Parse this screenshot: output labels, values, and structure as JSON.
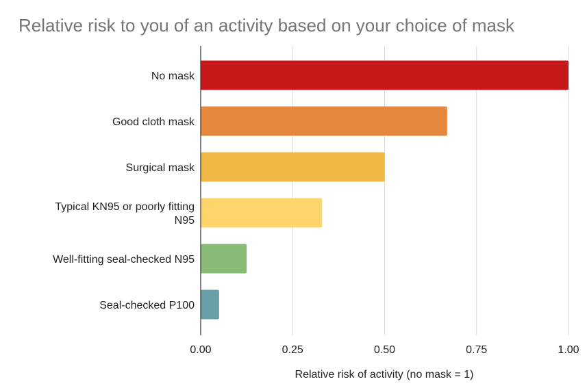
{
  "chart_data": {
    "type": "bar",
    "orientation": "horizontal",
    "title": "Relative risk to you of an activity based on your choice of mask",
    "xlabel": "Relative risk of activity (no mask = 1)",
    "ylabel": "",
    "xlim": [
      0,
      1
    ],
    "x_ticks": [
      "0.00",
      "0.25",
      "0.50",
      "0.75",
      "1.00"
    ],
    "grid": true,
    "categories": [
      [
        "No mask"
      ],
      [
        "Good cloth mask"
      ],
      [
        "Surgical mask"
      ],
      [
        "Typical KN95 or poorly fitting",
        "N95"
      ],
      [
        "Well-fitting seal-checked N95"
      ],
      [
        "Seal-checked P100"
      ]
    ],
    "values": [
      1.0,
      0.67,
      0.5,
      0.33,
      0.125,
      0.05
    ],
    "colors": [
      "#c8191a",
      "#e5883d",
      "#f1b745",
      "#fed46d",
      "#8abb76",
      "#6a9ea6"
    ]
  }
}
